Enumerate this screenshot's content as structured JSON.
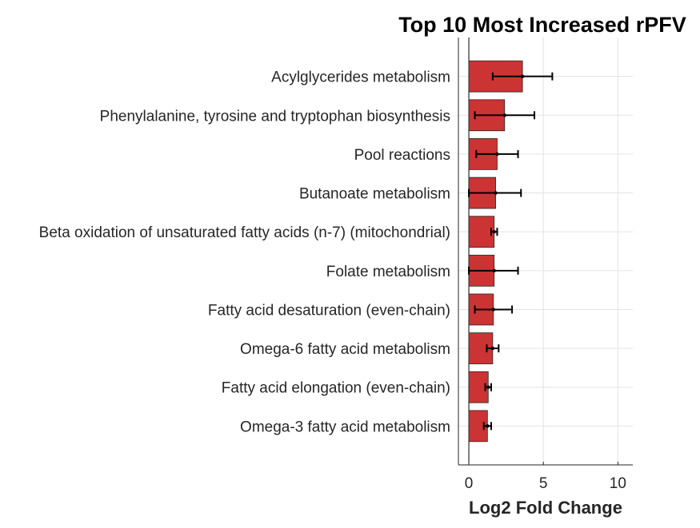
{
  "chart_data": {
    "type": "bar",
    "orientation": "horizontal",
    "title": "Top 10 Most Increased rPFV",
    "xlabel": "Log2 Fold Change",
    "ylabel": "",
    "xlim": [
      -0.7,
      11
    ],
    "xticks": [
      0,
      5,
      10
    ],
    "grid": true,
    "bar_color": "#cc3333",
    "categories": [
      "Acylglycerides metabolism",
      "Phenylalanine, tyrosine and tryptophan biosynthesis",
      "Pool reactions",
      "Butanoate metabolism",
      "Beta oxidation of unsaturated fatty acids (n-7) (mitochondrial)",
      "Folate metabolism",
      "Fatty acid desaturation (even-chain)",
      "Omega-6 fatty acid metabolism",
      "Fatty acid elongation (even-chain)",
      "Omega-3 fatty acid metabolism"
    ],
    "values": [
      3.6,
      2.4,
      1.9,
      1.8,
      1.7,
      1.7,
      1.65,
      1.6,
      1.3,
      1.25
    ],
    "error_low": [
      1.6,
      0.4,
      0.5,
      0.0,
      1.5,
      0.0,
      0.4,
      1.2,
      1.1,
      1.0
    ],
    "error_high": [
      5.6,
      4.4,
      3.3,
      3.5,
      1.9,
      3.3,
      2.9,
      2.0,
      1.5,
      1.5
    ]
  }
}
